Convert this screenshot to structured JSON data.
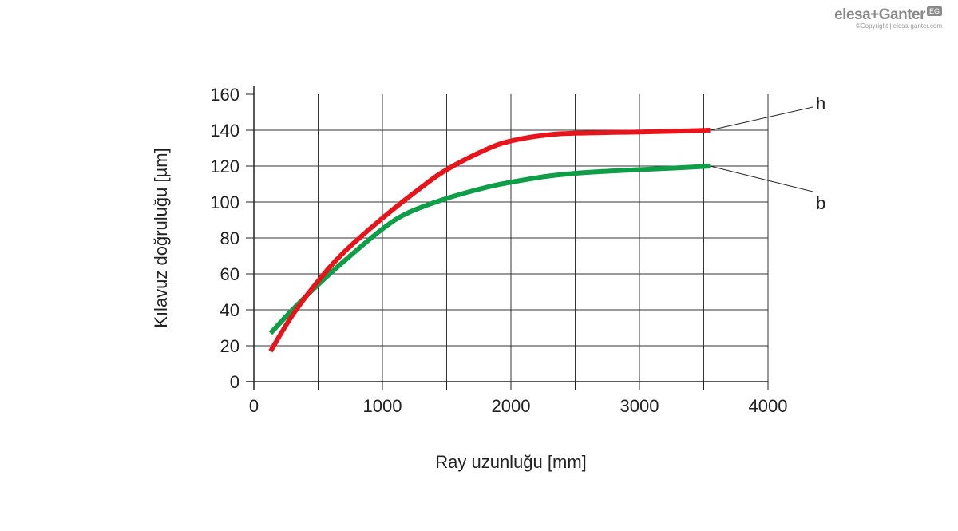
{
  "logo": {
    "brand": "elesa+Ganter",
    "badge": "EG",
    "copyright": "©Copyright | elesa-ganter.com"
  },
  "chart_data": {
    "type": "line",
    "title": "",
    "xlabel": "Ray uzunluğu [mm]",
    "ylabel": "Kılavuz doğruluğu [µm]",
    "xlim": [
      0,
      4000
    ],
    "ylim": [
      0,
      160
    ],
    "xticks": [
      0,
      1000,
      2000,
      3000,
      4000
    ],
    "yticks": [
      0,
      20,
      40,
      60,
      80,
      100,
      120,
      140,
      160
    ],
    "grid": true,
    "series": [
      {
        "name": "h",
        "color": "#e8141b",
        "x": [
          130,
          300,
          500,
          700,
          1000,
          1300,
          1500,
          1800,
          2000,
          2300,
          2600,
          3000,
          3300,
          3550
        ],
        "y": [
          17,
          37,
          56,
          72,
          91,
          108,
          118,
          129,
          134,
          137.5,
          138.5,
          139,
          139.5,
          140
        ]
      },
      {
        "name": "b",
        "color": "#0e9e48",
        "x": [
          130,
          300,
          500,
          700,
          1000,
          1200,
          1500,
          1800,
          2000,
          2300,
          2600,
          3000,
          3300,
          3550
        ],
        "y": [
          27,
          40,
          54,
          67,
          85,
          94,
          102,
          108,
          111,
          114.5,
          116.5,
          118,
          119,
          120
        ]
      }
    ]
  }
}
